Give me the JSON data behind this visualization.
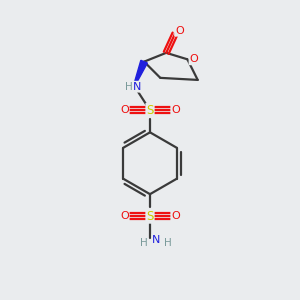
{
  "bg_color": "#eaecee",
  "atom_colors": {
    "C": "#3a3a3a",
    "H": "#7a9a9a",
    "N": "#2020dd",
    "O": "#ee1111",
    "S": "#cccc00"
  },
  "bond_color": "#3a3a3a",
  "bond_width": 1.6,
  "figsize": [
    3.0,
    3.0
  ],
  "dpi": 100
}
